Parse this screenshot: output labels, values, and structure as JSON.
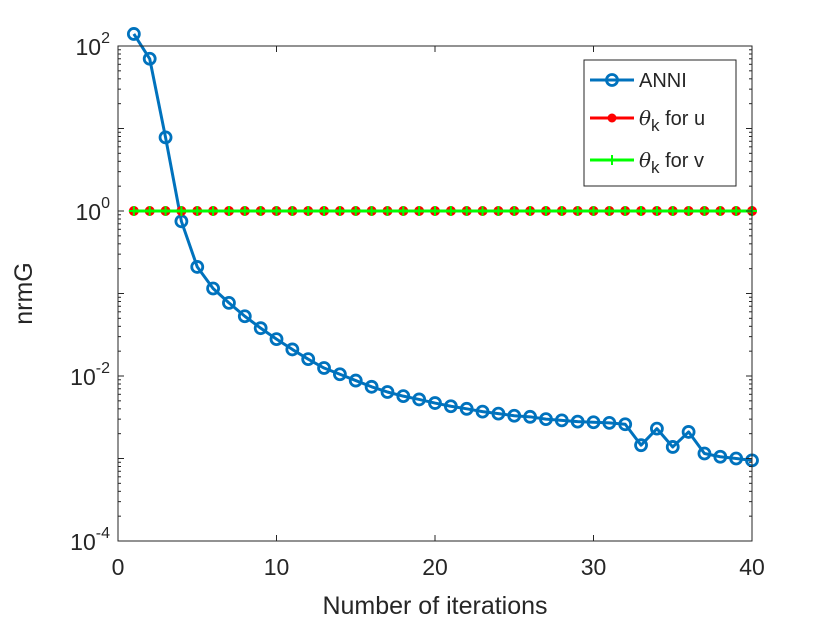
{
  "chart_data": {
    "type": "line",
    "yscale": "log",
    "xlabel": "Number of iterations",
    "ylabel": "nrmG",
    "xlim": [
      0,
      40
    ],
    "ylim": [
      0.0001,
      100
    ],
    "xticks": [
      0,
      10,
      20,
      30,
      40
    ],
    "yticks": [
      {
        "value": 0.0001,
        "base": "10",
        "exp": "-4"
      },
      {
        "value": 0.01,
        "base": "10",
        "exp": "-2"
      },
      {
        "value": 1,
        "base": "10",
        "exp": "0"
      },
      {
        "value": 100,
        "base": "10",
        "exp": "2"
      }
    ],
    "legend": {
      "position": "top-right"
    },
    "series": [
      {
        "name": "ANNI",
        "legend_label": "ANNI",
        "color": "#0072bd",
        "marker": "circle",
        "x": [
          1,
          2,
          3,
          4,
          5,
          6,
          7,
          8,
          9,
          10,
          11,
          12,
          13,
          14,
          15,
          16,
          17,
          18,
          19,
          20,
          21,
          22,
          23,
          24,
          25,
          26,
          27,
          28,
          29,
          30,
          31,
          32,
          33,
          34,
          35,
          36,
          37,
          38,
          39,
          40
        ],
        "values": [
          140,
          70,
          7.8,
          0.75,
          0.21,
          0.115,
          0.077,
          0.053,
          0.038,
          0.028,
          0.021,
          0.016,
          0.0125,
          0.0105,
          0.0088,
          0.0074,
          0.0064,
          0.0057,
          0.0052,
          0.0047,
          0.0043,
          0.004,
          0.0037,
          0.0035,
          0.0033,
          0.0032,
          0.003,
          0.0029,
          0.0028,
          0.00275,
          0.0027,
          0.0026,
          0.00145,
          0.0023,
          0.00138,
          0.0021,
          0.00115,
          0.00105,
          0.001,
          0.00095
        ]
      },
      {
        "name": "theta_k for u",
        "legend_symbol": "θ",
        "legend_subscript": "k",
        "legend_suffix": " for u",
        "color": "#ff0000",
        "marker": "dot",
        "x": [
          1,
          2,
          3,
          4,
          5,
          6,
          7,
          8,
          9,
          10,
          11,
          12,
          13,
          14,
          15,
          16,
          17,
          18,
          19,
          20,
          21,
          22,
          23,
          24,
          25,
          26,
          27,
          28,
          29,
          30,
          31,
          32,
          33,
          34,
          35,
          36,
          37,
          38,
          39,
          40
        ],
        "values": [
          1,
          1,
          1,
          1,
          1,
          1,
          1,
          1,
          1,
          1,
          1,
          1,
          1,
          1,
          1,
          1,
          1,
          1,
          1,
          1,
          1,
          1,
          1,
          1,
          1,
          1,
          1,
          1,
          1,
          1,
          1,
          1,
          1,
          1,
          1,
          1,
          1,
          1,
          1,
          1
        ]
      },
      {
        "name": "theta_k for v",
        "legend_symbol": "θ",
        "legend_subscript": "k",
        "legend_suffix": " for v",
        "color": "#00ff00",
        "marker": "plus",
        "x": [
          1,
          2,
          3,
          4,
          5,
          6,
          7,
          8,
          9,
          10,
          11,
          12,
          13,
          14,
          15,
          16,
          17,
          18,
          19,
          20,
          21,
          22,
          23,
          24,
          25,
          26,
          27,
          28,
          29,
          30,
          31,
          32,
          33,
          34,
          35,
          36,
          37,
          38,
          39,
          40
        ],
        "values": [
          1,
          1,
          1,
          1,
          1,
          1,
          1,
          1,
          1,
          1,
          1,
          1,
          1,
          1,
          1,
          1,
          1,
          1,
          1,
          1,
          1,
          1,
          1,
          1,
          1,
          1,
          1,
          1,
          1,
          1,
          1,
          1,
          1,
          1,
          1,
          1,
          1,
          1,
          1,
          1
        ]
      }
    ]
  }
}
